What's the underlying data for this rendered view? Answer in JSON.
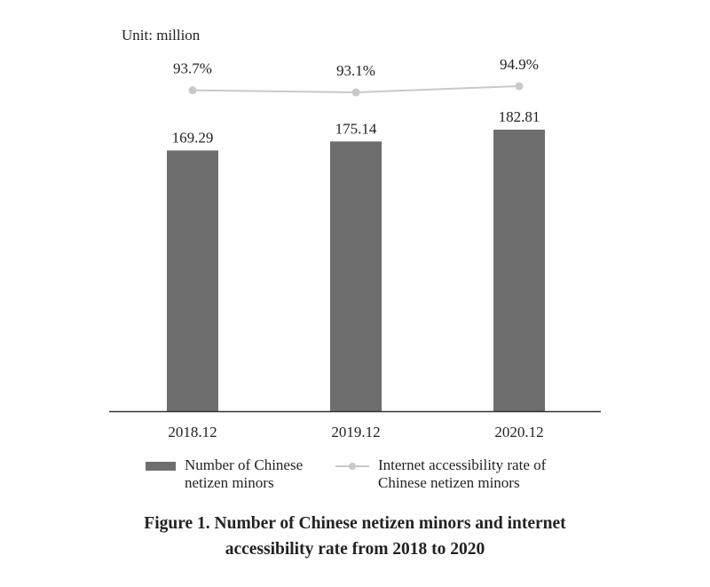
{
  "unit_label": "Unit: million",
  "legend": {
    "bars_label": "Number of Chinese\nnetizen minors",
    "line_label": "Internet accessibility rate of\nChinese netizen minors"
  },
  "caption": {
    "line1": "Figure 1. Number of Chinese netizen minors and internet",
    "line2": "accessibility rate from 2018 to 2020"
  },
  "colors": {
    "bar": "#6f6e6e",
    "line": "#c9c9c9",
    "axis": "#333333",
    "text": "#222222"
  },
  "chart_data": {
    "type": "bar",
    "categories": [
      "2018.12",
      "2019.12",
      "2020.12"
    ],
    "series": [
      {
        "name": "Number of Chinese netizen minors",
        "type": "bar",
        "values": [
          169.29,
          175.14,
          182.81
        ],
        "labels": [
          "169.29",
          "175.14",
          "182.81"
        ]
      },
      {
        "name": "Internet accessibility rate of Chinese netizen minors",
        "type": "line",
        "values": [
          93.7,
          93.1,
          94.9
        ],
        "labels": [
          "93.7%",
          "93.1%",
          "94.9%"
        ]
      }
    ],
    "ylabel": "Unit: million",
    "ylim": [
      0,
      182.81
    ],
    "grid": false,
    "legend_position": "bottom"
  }
}
